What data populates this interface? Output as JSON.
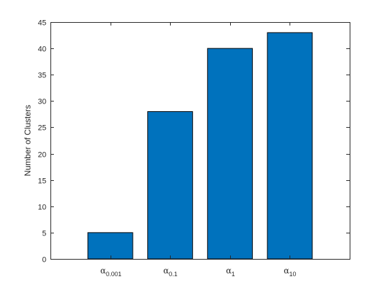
{
  "chart_data": {
    "type": "bar",
    "categories": [
      {
        "symbol": "α",
        "subscript": "0.001"
      },
      {
        "symbol": "α",
        "subscript": "0.1"
      },
      {
        "symbol": "α",
        "subscript": "1"
      },
      {
        "symbol": "α",
        "subscript": "10"
      }
    ],
    "values": [
      5,
      28,
      40,
      43
    ],
    "ylabel": "Number of Clusters",
    "xlabel": "",
    "title": "",
    "ylim": [
      0,
      45
    ],
    "xlim": [
      0,
      5
    ],
    "yticks": [
      0,
      5,
      10,
      15,
      20,
      25,
      30,
      35,
      40,
      45
    ],
    "grid": false,
    "bar_color": "#0072BD",
    "bar_edge_color": "#000000"
  }
}
